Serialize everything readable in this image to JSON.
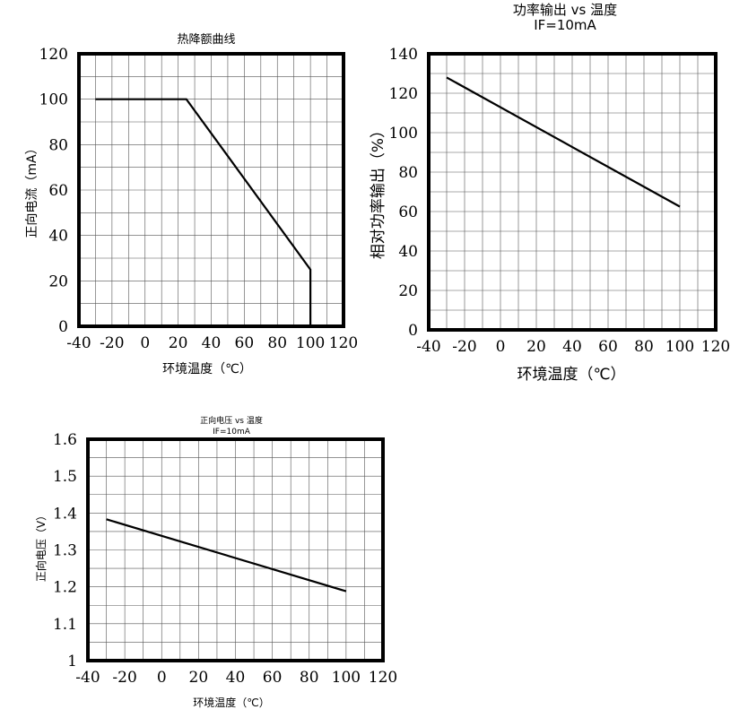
{
  "chart_data": [
    {
      "type": "line",
      "title": "热降额曲线",
      "subtitle": "",
      "xlabel": "环境温度（℃）",
      "ylabel": "正向电流（mA）",
      "xlim": [
        -40,
        120
      ],
      "ylim": [
        0,
        120
      ],
      "xticks": [
        -40,
        -20,
        0,
        20,
        40,
        60,
        80,
        100,
        120
      ],
      "yticks": [
        0,
        20,
        40,
        60,
        80,
        100,
        120
      ],
      "x_minor_step": 10,
      "y_minor_step": 10,
      "grid": true,
      "series": [
        {
          "x": [
            -30,
            25,
            100,
            100
          ],
          "y": [
            100,
            100,
            25,
            0
          ]
        }
      ]
    },
    {
      "type": "line",
      "title": "功率输出 vs 温度",
      "subtitle": "IF=10mA",
      "xlabel": "环境温度（℃）",
      "ylabel": "相对功率输出（%）",
      "xlim": [
        -40,
        120
      ],
      "ylim": [
        0,
        140
      ],
      "xticks": [
        -40,
        -20,
        0,
        20,
        40,
        60,
        80,
        100,
        120
      ],
      "yticks": [
        0,
        20,
        40,
        60,
        80,
        100,
        120,
        140
      ],
      "x_minor_step": 10,
      "y_minor_step": 10,
      "grid": true,
      "series": [
        {
          "x": [
            -30,
            100
          ],
          "y": [
            128,
            62.5
          ]
        }
      ]
    },
    {
      "type": "line",
      "title": "正向电压 vs 温度",
      "subtitle": "IF=10mA",
      "xlabel": "环境温度（℃）",
      "ylabel": "正向电压（V）",
      "xlim": [
        -40,
        120
      ],
      "ylim": [
        1,
        1.6
      ],
      "xticks": [
        -40,
        -20,
        0,
        20,
        40,
        60,
        80,
        100,
        120
      ],
      "yticks": [
        1,
        1.1,
        1.2,
        1.3,
        1.4,
        1.5,
        1.6
      ],
      "x_minor_step": 10,
      "y_minor_step": 0.05,
      "grid": true,
      "series": [
        {
          "x": [
            -30,
            100
          ],
          "y": [
            1.383,
            1.188
          ]
        }
      ]
    }
  ]
}
